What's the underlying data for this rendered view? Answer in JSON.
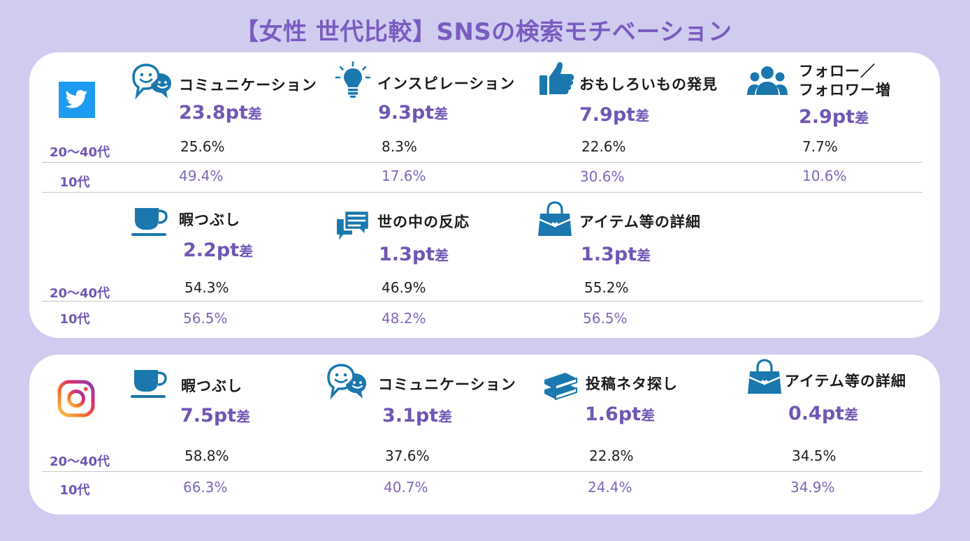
{
  "title": "【女性 世代比較】SNSの検索モチベーション",
  "colors": {
    "background": "#d0ccf0",
    "accent": "#7057b4",
    "icon": "#1a78ae"
  },
  "row_labels": {
    "a": "20〜40代",
    "b": "10代"
  },
  "unit_suffix": "pt差",
  "twitter": {
    "logo": "twitter-bird-icon",
    "items": [
      {
        "icon": "chat-bubbles-icon",
        "label": "コミュニケーション",
        "diff": "23.8pt",
        "a": "25.6%",
        "b": "49.4%"
      },
      {
        "icon": "lightbulb-icon",
        "label": "インスピレーション",
        "diff": "9.3pt",
        "a": "8.3%",
        "b": "17.6%"
      },
      {
        "icon": "thumbs-up-icon",
        "label": "おもしろいもの発見",
        "diff": "7.9pt",
        "a": "22.6%",
        "b": "30.6%"
      },
      {
        "icon": "people-icon",
        "label": "フォロー／",
        "label2": "フォロワー増",
        "diff": "2.9pt",
        "a": "7.7%",
        "b": "10.6%"
      },
      {
        "icon": "coffee-cup-icon",
        "label": "暇つぶし",
        "diff": "2.2pt",
        "a": "54.3%",
        "b": "56.5%"
      },
      {
        "icon": "message-icon",
        "label": "世の中の反応",
        "diff": "1.3pt",
        "a": "46.9%",
        "b": "48.2%"
      },
      {
        "icon": "handbag-icon",
        "label": "アイテム等の詳細",
        "diff": "1.3pt",
        "a": "55.2%",
        "b": "56.5%"
      }
    ]
  },
  "instagram": {
    "logo": "instagram-icon",
    "items": [
      {
        "icon": "coffee-cup-icon",
        "label": "暇つぶし",
        "diff": "7.5pt",
        "a": "58.8%",
        "b": "66.3%"
      },
      {
        "icon": "chat-bubbles-icon",
        "label": "コミュニケーション",
        "diff": "3.1pt",
        "a": "37.6%",
        "b": "40.7%"
      },
      {
        "icon": "books-icon",
        "label": "投稿ネタ探し",
        "diff": "1.6pt",
        "a": "22.8%",
        "b": "24.4%"
      },
      {
        "icon": "handbag-icon",
        "label": "アイテム等の詳細",
        "diff": "0.4pt",
        "a": "34.5%",
        "b": "34.9%"
      }
    ]
  },
  "chart_data": [
    {
      "type": "table",
      "title": "【女性 世代比較】SNSの検索モチベーション",
      "platform": "Twitter",
      "columns": [
        "コミュニケーション",
        "インスピレーション",
        "おもしろいもの発見",
        "フォロー／フォロワー増",
        "暇つぶし",
        "世の中の反応",
        "アイテム等の詳細"
      ],
      "series": [
        {
          "name": "20〜40代",
          "values": [
            25.6,
            8.3,
            22.6,
            7.7,
            54.3,
            46.9,
            55.2
          ]
        },
        {
          "name": "10代",
          "values": [
            49.4,
            17.6,
            30.6,
            10.6,
            56.5,
            48.2,
            56.5
          ]
        }
      ],
      "differences": [
        23.8,
        9.3,
        7.9,
        2.9,
        2.2,
        1.3,
        1.3
      ]
    },
    {
      "type": "table",
      "title": "【女性 世代比較】SNSの検索モチベーション",
      "platform": "Instagram",
      "columns": [
        "暇つぶし",
        "コミュニケーション",
        "投稿ネタ探し",
        "アイテム等の詳細"
      ],
      "series": [
        {
          "name": "20〜40代",
          "values": [
            58.8,
            37.6,
            22.8,
            34.5
          ]
        },
        {
          "name": "10代",
          "values": [
            66.3,
            40.7,
            24.4,
            34.9
          ]
        }
      ],
      "differences": [
        7.5,
        3.1,
        1.6,
        0.4
      ]
    }
  ]
}
